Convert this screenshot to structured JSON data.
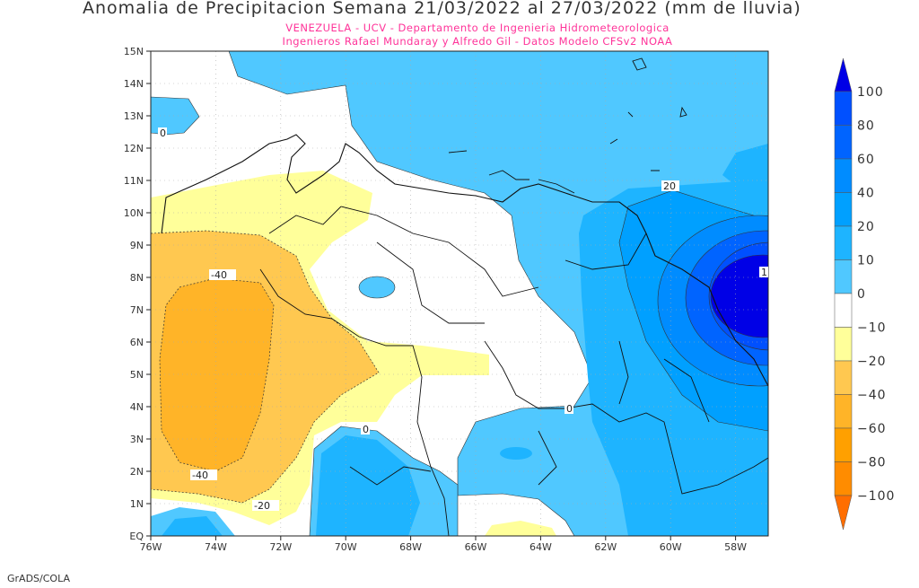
{
  "title": "Anomalia de Precipitacion Semana 21/03/2022 al 27/03/2022 (mm de lluvia)",
  "subtitle_1": "VENEZUELA - UCV - Departamento de Ingenieria Hidrometeorologica",
  "subtitle_2": "Ingenieros Rafael Mundaray y Alfredo Gil - Datos Modelo CFSv2 NOAA",
  "footer": "GrADS/COLA",
  "lat_ticks": [
    "15N",
    "14N",
    "13N",
    "12N",
    "11N",
    "10N",
    "9N",
    "8N",
    "7N",
    "6N",
    "5N",
    "4N",
    "3N",
    "2N",
    "1N",
    "EQ"
  ],
  "lon_ticks": [
    "76W",
    "74W",
    "72W",
    "70W",
    "68W",
    "66W",
    "64W",
    "62W",
    "60W",
    "58W"
  ],
  "contour_labels": {
    "c0_nw": "0",
    "c20": "20",
    "cm40_a": "-40",
    "cm40_b": "-40",
    "cm20": "-20",
    "c0_s": "0",
    "c0_e": "0",
    "c100": "1"
  },
  "colorbar": {
    "labels": [
      "100",
      "80",
      "60",
      "40",
      "20",
      "10",
      "0",
      "-10",
      "-20",
      "-40",
      "-60",
      "-80",
      "-100"
    ],
    "colors": {
      "gt100": "#0000e6",
      "b80": "#0050ff",
      "b60": "#0064ff",
      "b40": "#008cff",
      "b20": "#00a0ff",
      "b10": "#1eb4ff",
      "b0": "#50c8ff",
      "w": "#ffffff",
      "y10": "#ffff9a",
      "o20": "#ffc850",
      "o40": "#ffb428",
      "o60": "#ffa000",
      "o80": "#ff8c00",
      "lt100": "#ff6e00"
    }
  }
}
